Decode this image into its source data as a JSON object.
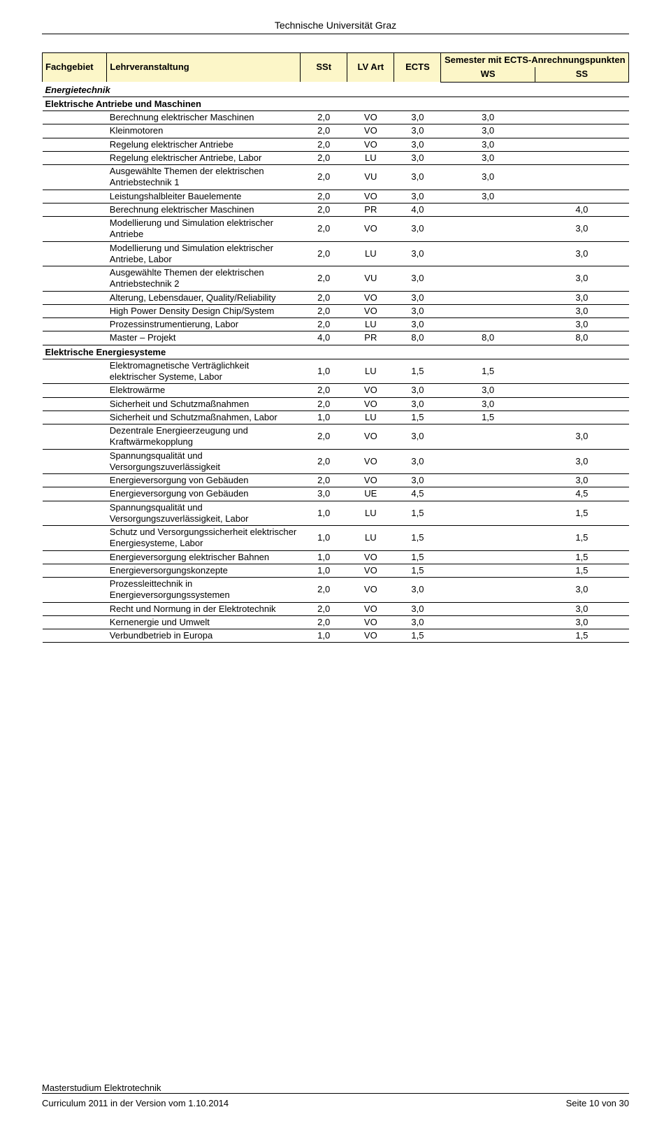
{
  "doc_header": "Technische Universität Graz",
  "header": {
    "fachgebiet": "Fachgebiet",
    "lehrveranstaltung": "Lehrveranstaltung",
    "sst": "SSt",
    "lvart": "LV Art",
    "ects": "ECTS",
    "semester_top": "Semester mit ECTS-Anrechnungspunkten",
    "ws": "WS",
    "ss": "SS"
  },
  "style": {
    "header_bg": "#fcf6c8",
    "border_color": "#000000",
    "font_size_pt": 10
  },
  "section1_title": "Energietechnik",
  "subsection1_title": "Elektrische Antriebe und Maschinen",
  "s1": {
    "r0": {
      "name": "Berechnung elektrischer Maschinen",
      "sst": "2,0",
      "art": "VO",
      "ects": "3,0",
      "ws": "3,0",
      "ss": ""
    },
    "r1": {
      "name": "Kleinmotoren",
      "sst": "2,0",
      "art": "VO",
      "ects": "3,0",
      "ws": "3,0",
      "ss": ""
    },
    "r2": {
      "name": "Regelung elektrischer Antriebe",
      "sst": "2,0",
      "art": "VO",
      "ects": "3,0",
      "ws": "3,0",
      "ss": ""
    },
    "r3": {
      "name": "Regelung elektrischer Antriebe, Labor",
      "sst": "2,0",
      "art": "LU",
      "ects": "3,0",
      "ws": "3,0",
      "ss": ""
    },
    "r4": {
      "name": "Ausgewählte Themen der elektrischen Antriebstechnik 1",
      "sst": "2,0",
      "art": "VU",
      "ects": "3,0",
      "ws": "3,0",
      "ss": ""
    },
    "r5": {
      "name": "Leistungshalbleiter Bauelemente",
      "sst": "2,0",
      "art": "VO",
      "ects": "3,0",
      "ws": "3,0",
      "ss": ""
    },
    "r6": {
      "name": "Berechnung elektrischer Maschinen",
      "sst": "2,0",
      "art": "PR",
      "ects": "4,0",
      "ws": "",
      "ss": "4,0"
    },
    "r7": {
      "name": "Modellierung und Simulation elektrischer Antriebe",
      "sst": "2,0",
      "art": "VO",
      "ects": "3,0",
      "ws": "",
      "ss": "3,0"
    },
    "r8": {
      "name": "Modellierung und Simulation elektrischer Antriebe, Labor",
      "sst": "2,0",
      "art": "LU",
      "ects": "3,0",
      "ws": "",
      "ss": "3,0"
    },
    "r9": {
      "name": "Ausgewählte Themen der elektrischen Antriebstechnik 2",
      "sst": "2,0",
      "art": "VU",
      "ects": "3,0",
      "ws": "",
      "ss": "3,0"
    },
    "r10": {
      "name": "Alterung, Lebensdauer, Quality/Reliability",
      "sst": "2,0",
      "art": "VO",
      "ects": "3,0",
      "ws": "",
      "ss": "3,0"
    },
    "r11": {
      "name": "High Power Density Design Chip/System",
      "sst": "2,0",
      "art": "VO",
      "ects": "3,0",
      "ws": "",
      "ss": "3,0"
    },
    "r12": {
      "name": "Prozessinstrumentierung, Labor",
      "sst": "2,0",
      "art": "LU",
      "ects": "3,0",
      "ws": "",
      "ss": "3,0"
    },
    "r13": {
      "name": "Master – Projekt",
      "sst": "4,0",
      "art": "PR",
      "ects": "8,0",
      "ws": "8,0",
      "ss": "8,0"
    }
  },
  "subsection2_title": "Elektrische Energiesysteme",
  "s2": {
    "r0": {
      "name": "Elektromagnetische Verträglichkeit elektrischer Systeme, Labor",
      "sst": "1,0",
      "art": "LU",
      "ects": "1,5",
      "ws": "1,5",
      "ss": ""
    },
    "r1": {
      "name": "Elektrowärme",
      "sst": "2,0",
      "art": "VO",
      "ects": "3,0",
      "ws": "3,0",
      "ss": ""
    },
    "r2": {
      "name": "Sicherheit und Schutzmaßnahmen",
      "sst": "2,0",
      "art": "VO",
      "ects": "3,0",
      "ws": "3,0",
      "ss": ""
    },
    "r3": {
      "name": "Sicherheit und Schutzmaßnahmen, Labor",
      "sst": "1,0",
      "art": "LU",
      "ects": "1,5",
      "ws": "1,5",
      "ss": ""
    },
    "r4": {
      "name": "Dezentrale Energieerzeugung und Kraftwärmekopplung",
      "sst": "2,0",
      "art": "VO",
      "ects": "3,0",
      "ws": "",
      "ss": "3,0"
    },
    "r5": {
      "name": "Spannungsqualität und Versorgungszuverlässigkeit",
      "sst": "2,0",
      "art": "VO",
      "ects": "3,0",
      "ws": "",
      "ss": "3,0"
    },
    "r6": {
      "name": "Energieversorgung von Gebäuden",
      "sst": "2,0",
      "art": "VO",
      "ects": "3,0",
      "ws": "",
      "ss": "3,0"
    },
    "r7": {
      "name": "Energieversorgung von Gebäuden",
      "sst": "3,0",
      "art": "UE",
      "ects": "4,5",
      "ws": "",
      "ss": "4,5"
    },
    "r8": {
      "name": "Spannungsqualität und Versorgungszuverlässigkeit, Labor",
      "sst": "1,0",
      "art": "LU",
      "ects": "1,5",
      "ws": "",
      "ss": "1,5"
    },
    "r9": {
      "name": "Schutz und Versorgungssicherheit elektrischer Energiesysteme, Labor",
      "sst": "1,0",
      "art": "LU",
      "ects": "1,5",
      "ws": "",
      "ss": "1,5"
    },
    "r10": {
      "name": "Energieversorgung elektrischer Bahnen",
      "sst": "1,0",
      "art": "VO",
      "ects": "1,5",
      "ws": "",
      "ss": "1,5"
    },
    "r11": {
      "name": "Energieversorgungskonzepte",
      "sst": "1,0",
      "art": "VO",
      "ects": "1,5",
      "ws": "",
      "ss": "1,5"
    },
    "r12": {
      "name": "Prozessleittechnik in Energieversorgungssystemen",
      "sst": "2,0",
      "art": "VO",
      "ects": "3,0",
      "ws": "",
      "ss": "3,0"
    },
    "r13": {
      "name": "Recht und Normung in der Elektrotechnik",
      "sst": "2,0",
      "art": "VO",
      "ects": "3,0",
      "ws": "",
      "ss": "3,0"
    },
    "r14": {
      "name": "Kernenergie und Umwelt",
      "sst": "2,0",
      "art": "VO",
      "ects": "3,0",
      "ws": "",
      "ss": "3,0"
    },
    "r15": {
      "name": "Verbundbetrieb in Europa",
      "sst": "1,0",
      "art": "VO",
      "ects": "1,5",
      "ws": "",
      "ss": "1,5"
    }
  },
  "footer": {
    "line1": "Masterstudium Elektrotechnik",
    "line2_left": "Curriculum 2011 in der Version vom 1.10.2014",
    "line2_right": "Seite 10 von 30"
  }
}
